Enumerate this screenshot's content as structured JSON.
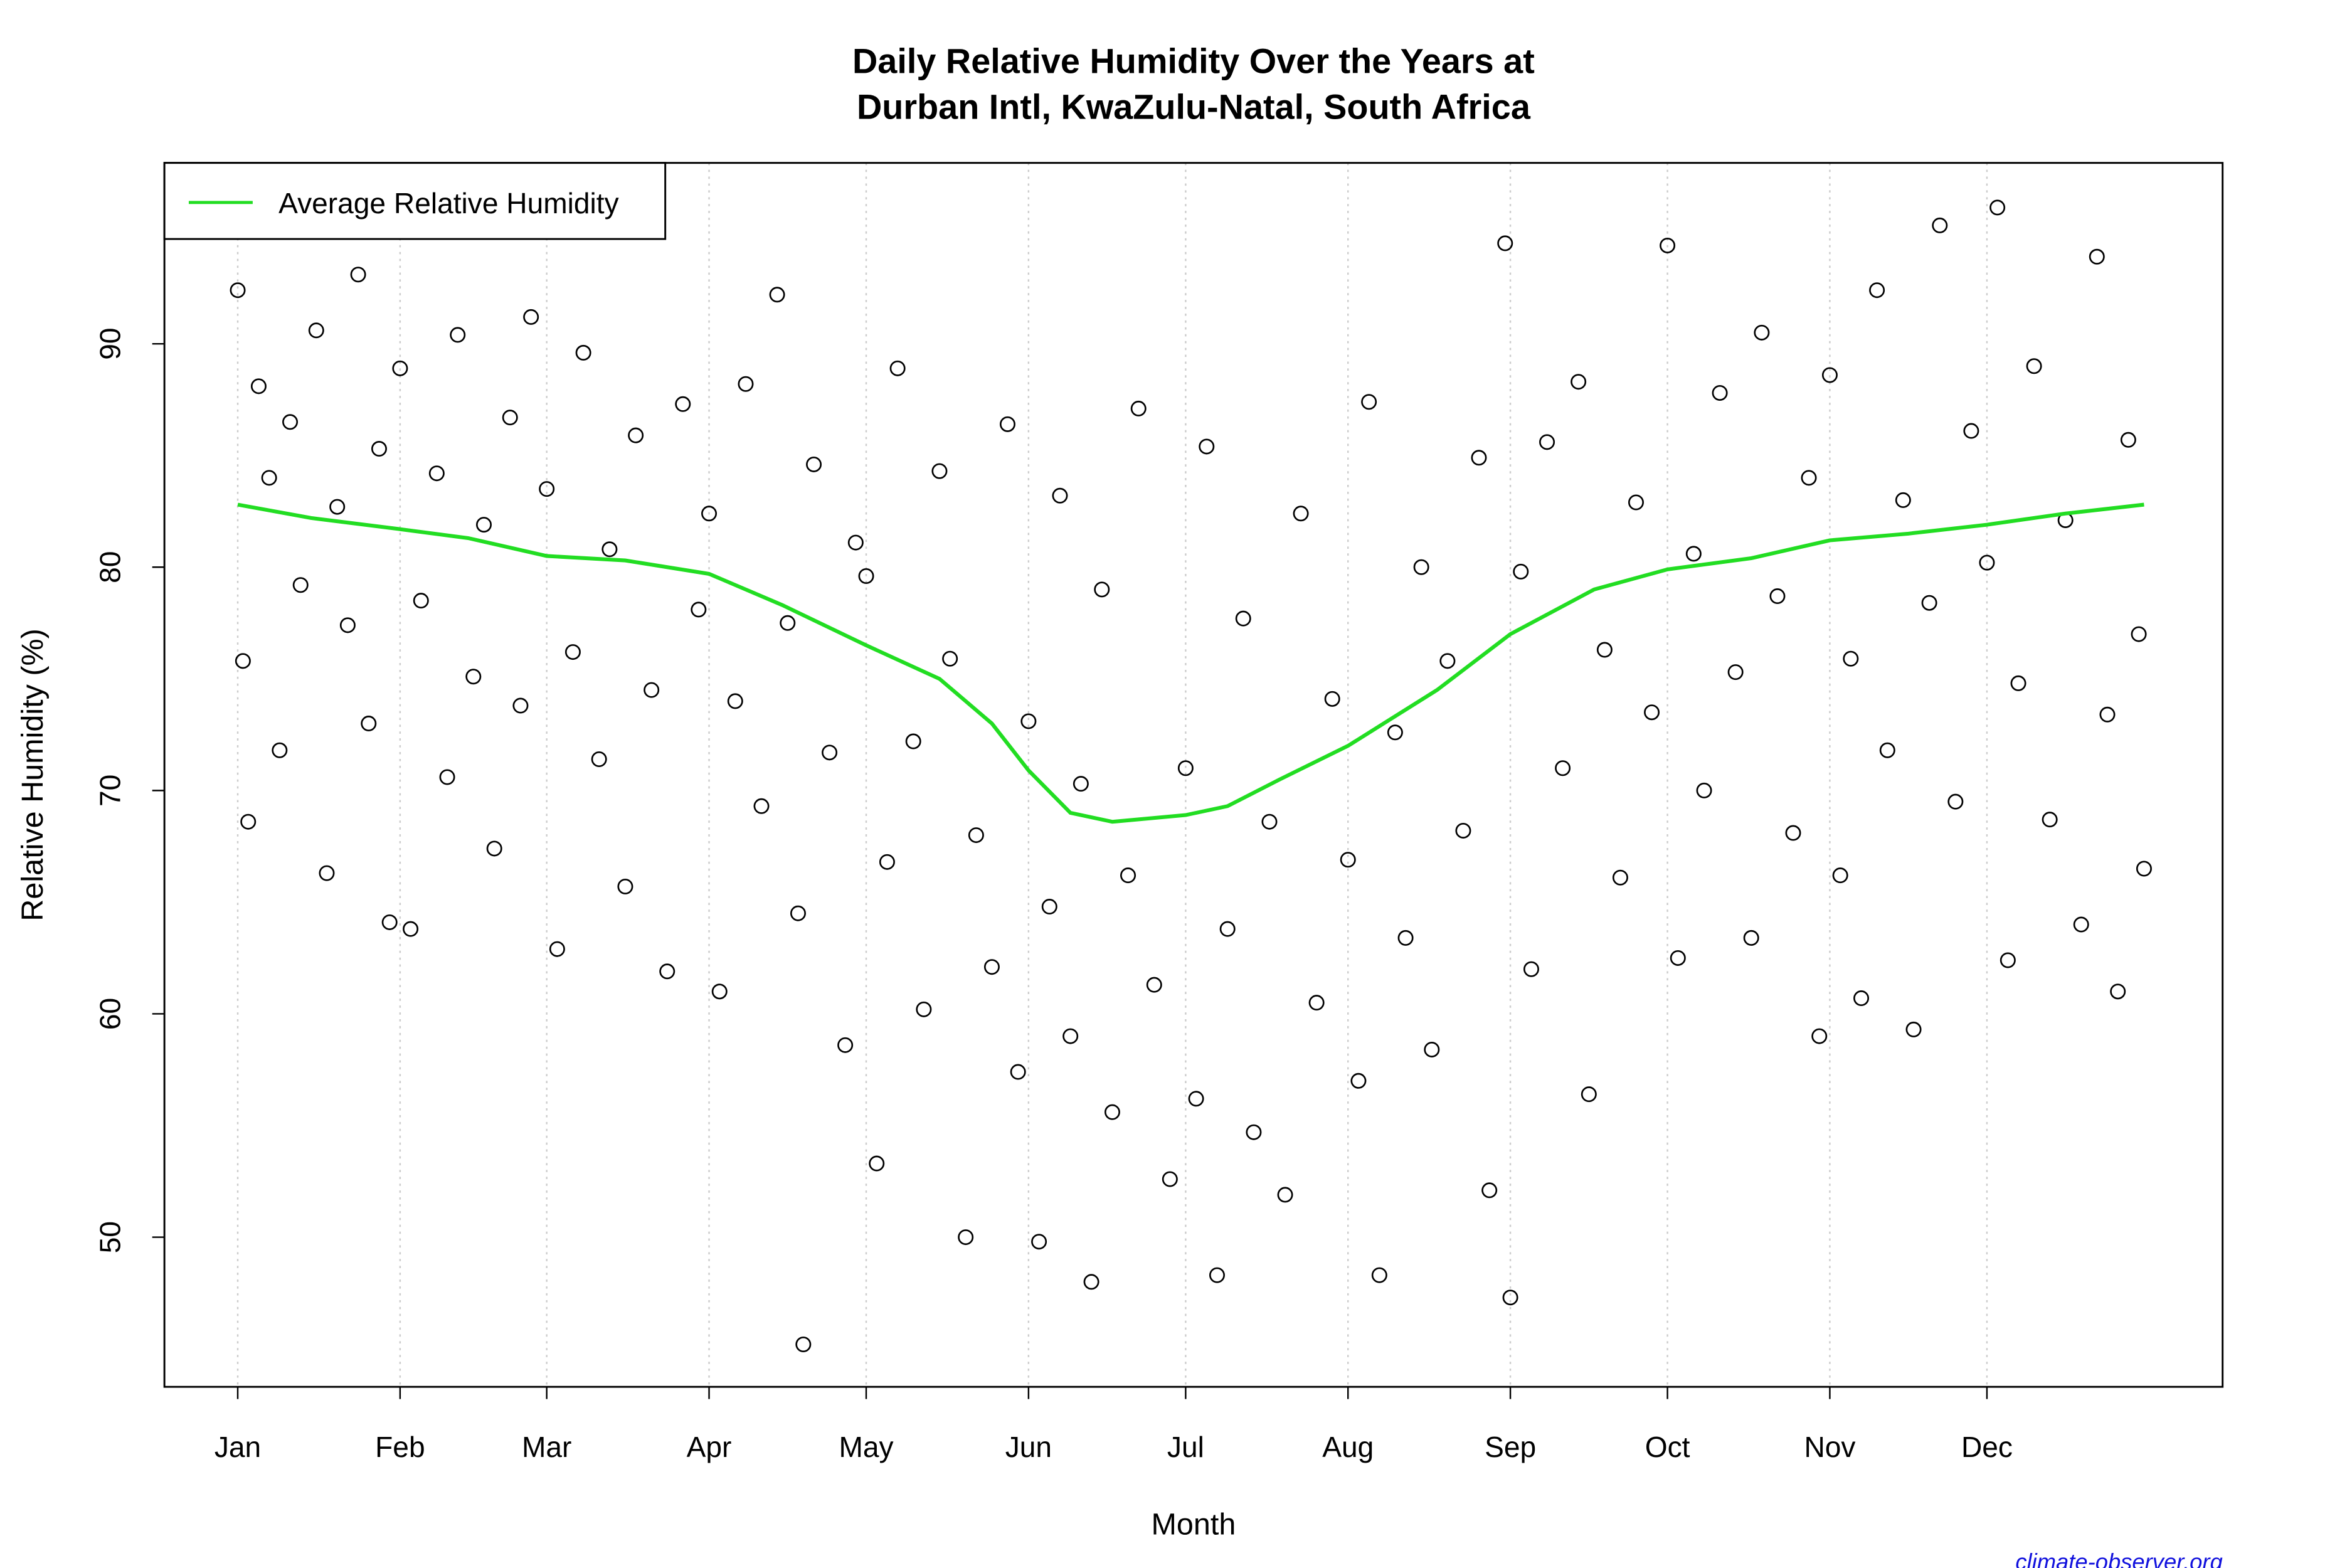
{
  "chart_data": {
    "type": "scatter",
    "title": [
      "Daily Relative Humidity Over the Years at",
      "Durban Intl, KwaZulu-Natal, South Africa"
    ],
    "xlabel": "Month",
    "ylabel": "Relative Humidity  (%)",
    "annotation": "climate-observer.org",
    "xlim": [
      -13,
      380
    ],
    "ylim": [
      43.3,
      98.1
    ],
    "xticks": [
      {
        "value": 1,
        "label": "Jan"
      },
      {
        "value": 32,
        "label": "Feb"
      },
      {
        "value": 60,
        "label": "Mar"
      },
      {
        "value": 91,
        "label": "Apr"
      },
      {
        "value": 121,
        "label": "May"
      },
      {
        "value": 152,
        "label": "Jun"
      },
      {
        "value": 182,
        "label": "Jul"
      },
      {
        "value": 213,
        "label": "Aug"
      },
      {
        "value": 244,
        "label": "Sep"
      },
      {
        "value": 274,
        "label": "Oct"
      },
      {
        "value": 305,
        "label": "Nov"
      },
      {
        "value": 335,
        "label": "Dec"
      }
    ],
    "yticks": [
      50,
      60,
      70,
      80,
      90
    ],
    "grid": true,
    "legend": "top-left",
    "points": {
      "color": "#000000",
      "x": [
        1,
        2,
        3,
        5,
        7,
        9,
        11,
        13,
        16,
        18,
        20,
        22,
        24,
        26,
        28,
        30,
        32,
        34,
        36,
        39,
        41,
        43,
        46,
        48,
        50,
        53,
        55,
        57,
        60,
        62,
        65,
        67,
        70,
        72,
        75,
        77,
        80,
        83,
        86,
        89,
        91,
        93,
        96,
        98,
        101,
        104,
        106,
        108,
        109,
        111,
        114,
        117,
        119,
        121,
        123,
        125,
        127,
        130,
        132,
        135,
        137,
        140,
        142,
        145,
        148,
        150,
        152,
        154,
        156,
        158,
        160,
        162,
        164,
        166,
        168,
        171,
        173,
        176,
        179,
        182,
        184,
        186,
        188,
        190,
        193,
        195,
        198,
        201,
        204,
        207,
        210,
        213,
        215,
        217,
        219,
        222,
        224,
        227,
        229,
        232,
        235,
        238,
        240,
        243,
        244,
        246,
        248,
        251,
        254,
        257,
        259,
        262,
        265,
        268,
        271,
        274,
        276,
        279,
        281,
        284,
        287,
        290,
        292,
        295,
        298,
        301,
        303,
        305,
        307,
        309,
        311,
        314,
        316,
        319,
        321,
        324,
        326,
        329,
        332,
        335,
        337,
        339,
        341,
        344,
        347,
        350,
        353,
        356,
        358,
        360,
        362,
        364,
        365
      ],
      "y": [
        92.4,
        75.8,
        68.6,
        88.1,
        84.0,
        71.8,
        86.5,
        79.2,
        90.6,
        66.3,
        82.7,
        77.4,
        93.1,
        73.0,
        85.3,
        64.1,
        88.9,
        63.8,
        78.5,
        84.2,
        70.6,
        90.4,
        75.1,
        81.9,
        67.4,
        86.7,
        73.8,
        91.2,
        83.5,
        62.9,
        76.2,
        89.6,
        71.4,
        80.8,
        65.7,
        85.9,
        74.5,
        61.9,
        87.3,
        78.1,
        82.4,
        61.0,
        74.0,
        88.2,
        69.3,
        92.2,
        77.5,
        64.5,
        45.2,
        84.6,
        71.7,
        58.6,
        81.1,
        79.6,
        53.3,
        66.8,
        88.9,
        72.2,
        60.2,
        84.3,
        75.9,
        50.0,
        68.0,
        62.1,
        86.4,
        57.4,
        73.1,
        49.8,
        64.8,
        83.2,
        59.0,
        70.3,
        48.0,
        79.0,
        55.6,
        66.2,
        87.1,
        61.3,
        52.6,
        71.0,
        56.2,
        85.4,
        48.3,
        63.8,
        77.7,
        54.7,
        68.6,
        51.9,
        82.4,
        60.5,
        74.1,
        66.9,
        57.0,
        87.4,
        48.3,
        72.6,
        63.4,
        80.0,
        58.4,
        75.8,
        68.2,
        84.9,
        52.1,
        94.5,
        47.3,
        79.8,
        62.0,
        85.6,
        71.0,
        88.3,
        56.4,
        76.3,
        66.1,
        82.9,
        73.5,
        94.4,
        62.5,
        80.6,
        70.0,
        87.8,
        75.3,
        63.4,
        90.5,
        78.7,
        68.1,
        84.0,
        59.0,
        88.6,
        66.2,
        75.9,
        60.7,
        92.4,
        71.8,
        83.0,
        59.3,
        78.4,
        95.3,
        69.5,
        86.1,
        80.2,
        96.1,
        62.4,
        74.8,
        89.0,
        68.7,
        82.1,
        64.0,
        93.9,
        73.4,
        61.0,
        85.7,
        77.0,
        66.5
      ]
    },
    "series": [
      {
        "name": "Average Relative Humidity",
        "color": "#22dd22",
        "x": [
          1,
          15,
          32,
          45,
          60,
          75,
          91,
          105,
          121,
          135,
          145,
          152,
          160,
          168,
          182,
          190,
          200,
          213,
          230,
          244,
          260,
          274,
          290,
          305,
          320,
          335,
          350,
          365
        ],
        "values": [
          82.8,
          82.2,
          81.7,
          81.3,
          80.5,
          80.3,
          79.7,
          78.3,
          76.5,
          75.0,
          73.0,
          70.9,
          69.0,
          68.6,
          68.9,
          69.3,
          70.5,
          72.0,
          74.5,
          77.0,
          79.0,
          79.9,
          80.4,
          81.2,
          81.5,
          81.9,
          82.4,
          82.8
        ]
      }
    ]
  }
}
